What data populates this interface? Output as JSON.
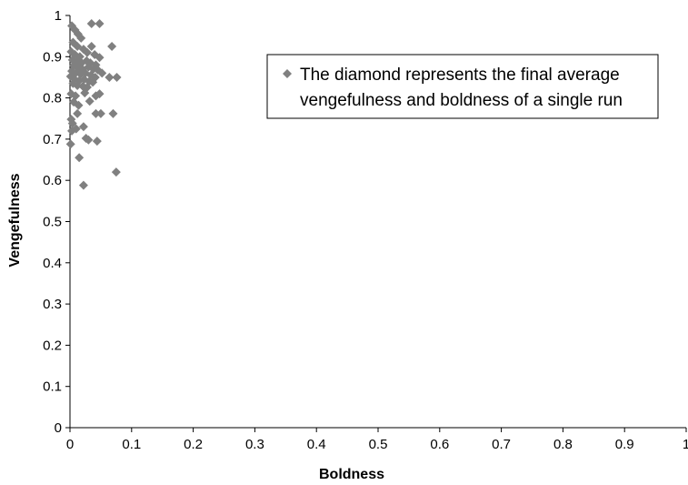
{
  "chart_data": {
    "type": "scatter",
    "xlabel": "Boldness",
    "ylabel": "Vengefulness",
    "xlim": [
      0,
      1
    ],
    "ylim": [
      0,
      1
    ],
    "x_ticks": [
      "0",
      "0.1",
      "0.2",
      "0.3",
      "0.4",
      "0.5",
      "0.6",
      "0.7",
      "0.8",
      "0.9",
      "1"
    ],
    "y_ticks": [
      "0",
      "0.1",
      "0.2",
      "0.3",
      "0.4",
      "0.5",
      "0.6",
      "0.7",
      "0.8",
      "0.9",
      "1"
    ],
    "grid": false,
    "legend": {
      "position": "top-right",
      "lines": [
        "The diamond represents the final average",
        "vengefulness and boldness of a single run"
      ]
    },
    "marker_color": "#808080",
    "series": [
      {
        "marker": "diamond",
        "points": [
          [
            0.035,
            0.98
          ],
          [
            0.048,
            0.98
          ],
          [
            0.003,
            0.975
          ],
          [
            0.008,
            0.965
          ],
          [
            0.013,
            0.955
          ],
          [
            0.018,
            0.945
          ],
          [
            0.005,
            0.935
          ],
          [
            0.012,
            0.925
          ],
          [
            0.022,
            0.918
          ],
          [
            0.035,
            0.925
          ],
          [
            0.068,
            0.925
          ],
          [
            0.002,
            0.912
          ],
          [
            0.008,
            0.905
          ],
          [
            0.016,
            0.9
          ],
          [
            0.028,
            0.91
          ],
          [
            0.04,
            0.905
          ],
          [
            0.048,
            0.898
          ],
          [
            0.004,
            0.892
          ],
          [
            0.011,
            0.888
          ],
          [
            0.019,
            0.885
          ],
          [
            0.027,
            0.89
          ],
          [
            0.033,
            0.885
          ],
          [
            0.042,
            0.88
          ],
          [
            0.006,
            0.878
          ],
          [
            0.014,
            0.872
          ],
          [
            0.02,
            0.87
          ],
          [
            0.03,
            0.875
          ],
          [
            0.038,
            0.87
          ],
          [
            0.045,
            0.868
          ],
          [
            0.052,
            0.86
          ],
          [
            0.003,
            0.865
          ],
          [
            0.009,
            0.86
          ],
          [
            0.017,
            0.858
          ],
          [
            0.025,
            0.86
          ],
          [
            0.034,
            0.855
          ],
          [
            0.041,
            0.85
          ],
          [
            0.064,
            0.85
          ],
          [
            0.076,
            0.85
          ],
          [
            0.001,
            0.852
          ],
          [
            0.007,
            0.846
          ],
          [
            0.015,
            0.842
          ],
          [
            0.023,
            0.845
          ],
          [
            0.031,
            0.84
          ],
          [
            0.037,
            0.838
          ],
          [
            0.005,
            0.835
          ],
          [
            0.012,
            0.83
          ],
          [
            0.021,
            0.828
          ],
          [
            0.028,
            0.826
          ],
          [
            0.002,
            0.81
          ],
          [
            0.009,
            0.805
          ],
          [
            0.024,
            0.812
          ],
          [
            0.042,
            0.805
          ],
          [
            0.048,
            0.81
          ],
          [
            0.006,
            0.79
          ],
          [
            0.014,
            0.782
          ],
          [
            0.032,
            0.792
          ],
          [
            0.012,
            0.762
          ],
          [
            0.042,
            0.762
          ],
          [
            0.05,
            0.762
          ],
          [
            0.07,
            0.762
          ],
          [
            0.002,
            0.748
          ],
          [
            0.004,
            0.738
          ],
          [
            0.022,
            0.73
          ],
          [
            0.003,
            0.72
          ],
          [
            0.01,
            0.725
          ],
          [
            0.026,
            0.702
          ],
          [
            0.03,
            0.698
          ],
          [
            0.044,
            0.695
          ],
          [
            0.001,
            0.688
          ],
          [
            0.015,
            0.655
          ],
          [
            0.075,
            0.62
          ],
          [
            0.022,
            0.588
          ]
        ]
      }
    ]
  }
}
